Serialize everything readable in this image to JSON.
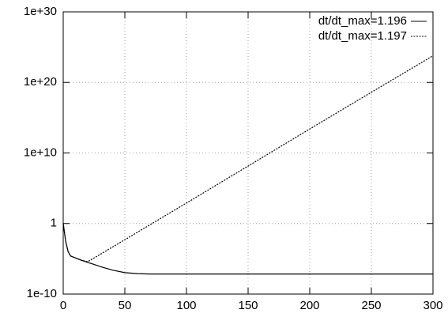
{
  "chart_data": {
    "type": "line",
    "xlim": [
      0,
      300
    ],
    "xticks": [
      0,
      50,
      100,
      150,
      200,
      250,
      300
    ],
    "ylim": [
      1e-10,
      1e+30
    ],
    "yticks": [
      {
        "value": 1e-10,
        "label": "1e-10"
      },
      1,
      {
        "value": 10000000000.0,
        "label": "1e+10"
      },
      {
        "value": 1e+20,
        "label": "1e+20"
      },
      {
        "value": 1e+30,
        "label": "1e+30"
      }
    ],
    "log_y": true,
    "grid": true,
    "legend": "top right",
    "series": [
      {
        "name": "dt/dt_max=1.196",
        "color": "#000000",
        "dash": "solid",
        "x": [
          0,
          2,
          4,
          6,
          10,
          15,
          20,
          25,
          30,
          40,
          50,
          60,
          70,
          80,
          100,
          150,
          200,
          250,
          300
        ],
        "values": [
          1,
          0.003,
          0.0001,
          2.5e-05,
          1.3e-05,
          6e-06,
          3e-06,
          1.6e-06,
          8e-07,
          2.5e-07,
          1.1e-07,
          8e-08,
          7e-08,
          7e-08,
          7e-08,
          7e-08,
          7e-08,
          7e-08,
          7e-08
        ]
      },
      {
        "name": "dt/dt_max=1.197",
        "color": "#000000",
        "dash": "dotted",
        "x": [
          0,
          2,
          4,
          6,
          10,
          15,
          20,
          25,
          50,
          100,
          150,
          200,
          250,
          300
        ],
        "values": [
          1,
          0.003,
          0.0001,
          2.5e-05,
          1.3e-05,
          6e-06,
          4e-06,
          1.3e-05,
          0.005,
          800,
          140000000.0,
          25000000000000.0,
          4e+18,
          6e+23
        ]
      }
    ]
  }
}
